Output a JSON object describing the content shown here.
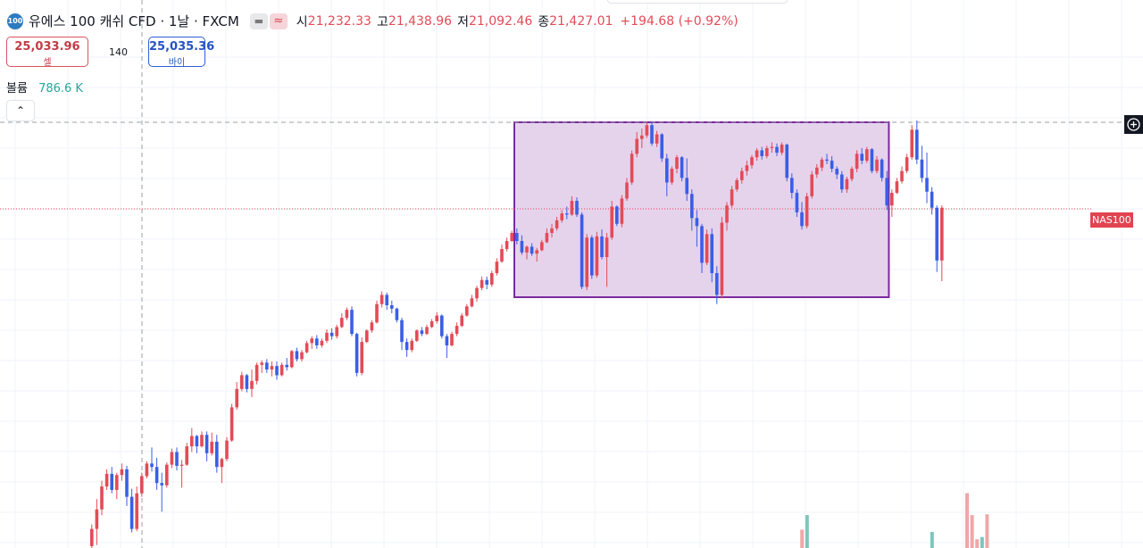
{
  "header": {
    "symbol_badge": "100",
    "title": "유에스 100 캐쉬 CFD · 1날 · FXCM",
    "ohlc": [
      {
        "label": "시",
        "value": "21,232.33"
      },
      {
        "label": "고",
        "value": "21,438.96"
      },
      {
        "label": "저",
        "value": "21,092.46"
      },
      {
        "label": "종",
        "value": "21,427.01"
      }
    ],
    "change": "+194.68 (+0.92%)"
  },
  "trade": {
    "sell_price": "25,033.96",
    "sell_label": "셀",
    "spread": "140",
    "buy_price": "25,035.36",
    "buy_label": "바이"
  },
  "volume": {
    "label": "볼륨",
    "value": "786.6 K"
  },
  "price_tag": "NAS100",
  "colors": {
    "up": "#e34b57",
    "down": "#3a5ee6",
    "box_fill": "#e5d3ec",
    "box_stroke": "#7b2a9e",
    "vol_up": "#efa7a8",
    "vol_down": "#7fc5bc"
  },
  "chart_data": {
    "type": "candlestick",
    "axes_visible": false,
    "grid": true,
    "price_range": [
      17800,
      21600
    ],
    "last_price_line": 20630,
    "crosshair_price": 21385,
    "range_box": {
      "start_index": 85,
      "end_index": 159,
      "high": 21385,
      "low": 19860
    },
    "candles": [
      {
        "o": 17690,
        "h": 17880,
        "l": 17570,
        "c": 17840
      },
      {
        "o": 17840,
        "h": 18100,
        "l": 17700,
        "c": 18010
      },
      {
        "o": 18010,
        "h": 18260,
        "l": 17960,
        "c": 18210
      },
      {
        "o": 18210,
        "h": 18360,
        "l": 18180,
        "c": 18320
      },
      {
        "o": 18320,
        "h": 18380,
        "l": 18150,
        "c": 18180
      },
      {
        "o": 18180,
        "h": 18330,
        "l": 18100,
        "c": 18310
      },
      {
        "o": 18310,
        "h": 18410,
        "l": 18260,
        "c": 18360
      },
      {
        "o": 18360,
        "h": 18390,
        "l": 18040,
        "c": 18120
      },
      {
        "o": 18120,
        "h": 18190,
        "l": 17810,
        "c": 17840
      },
      {
        "o": 17840,
        "h": 18210,
        "l": 17820,
        "c": 18150
      },
      {
        "o": 18150,
        "h": 18330,
        "l": 18120,
        "c": 18300
      },
      {
        "o": 18300,
        "h": 18430,
        "l": 18280,
        "c": 18410
      },
      {
        "o": 18410,
        "h": 18550,
        "l": 18340,
        "c": 18380
      },
      {
        "o": 18380,
        "h": 18460,
        "l": 18180,
        "c": 18240
      },
      {
        "o": 18240,
        "h": 18330,
        "l": 17990,
        "c": 18220
      },
      {
        "o": 18220,
        "h": 18420,
        "l": 18200,
        "c": 18400
      },
      {
        "o": 18400,
        "h": 18540,
        "l": 18370,
        "c": 18510
      },
      {
        "o": 18510,
        "h": 18550,
        "l": 18350,
        "c": 18390
      },
      {
        "o": 18390,
        "h": 18440,
        "l": 18200,
        "c": 18400
      },
      {
        "o": 18400,
        "h": 18590,
        "l": 18390,
        "c": 18560
      },
      {
        "o": 18560,
        "h": 18720,
        "l": 18510,
        "c": 18650
      },
      {
        "o": 18650,
        "h": 18660,
        "l": 18500,
        "c": 18560
      },
      {
        "o": 18560,
        "h": 18690,
        "l": 18550,
        "c": 18660
      },
      {
        "o": 18660,
        "h": 18690,
        "l": 18430,
        "c": 18500
      },
      {
        "o": 18500,
        "h": 18680,
        "l": 18480,
        "c": 18600
      },
      {
        "o": 18600,
        "h": 18660,
        "l": 18330,
        "c": 18380
      },
      {
        "o": 18380,
        "h": 18460,
        "l": 18240,
        "c": 18450
      },
      {
        "o": 18450,
        "h": 18640,
        "l": 18430,
        "c": 18610
      },
      {
        "o": 18610,
        "h": 18930,
        "l": 18600,
        "c": 18900
      },
      {
        "o": 18900,
        "h": 19120,
        "l": 18880,
        "c": 19060
      },
      {
        "o": 19060,
        "h": 19210,
        "l": 19040,
        "c": 19180
      },
      {
        "o": 19180,
        "h": 19190,
        "l": 19030,
        "c": 19060
      },
      {
        "o": 19060,
        "h": 19230,
        "l": 18990,
        "c": 19130
      },
      {
        "o": 19130,
        "h": 19290,
        "l": 19100,
        "c": 19270
      },
      {
        "o": 19270,
        "h": 19310,
        "l": 19200,
        "c": 19290
      },
      {
        "o": 19290,
        "h": 19320,
        "l": 19200,
        "c": 19230
      },
      {
        "o": 19230,
        "h": 19300,
        "l": 19170,
        "c": 19260
      },
      {
        "o": 19260,
        "h": 19300,
        "l": 19140,
        "c": 19180
      },
      {
        "o": 19180,
        "h": 19290,
        "l": 19170,
        "c": 19270
      },
      {
        "o": 19270,
        "h": 19330,
        "l": 19220,
        "c": 19250
      },
      {
        "o": 19250,
        "h": 19400,
        "l": 19240,
        "c": 19390
      },
      {
        "o": 19390,
        "h": 19420,
        "l": 19300,
        "c": 19320
      },
      {
        "o": 19320,
        "h": 19400,
        "l": 19300,
        "c": 19380
      },
      {
        "o": 19380,
        "h": 19480,
        "l": 19370,
        "c": 19460
      },
      {
        "o": 19460,
        "h": 19520,
        "l": 19410,
        "c": 19500
      },
      {
        "o": 19500,
        "h": 19530,
        "l": 19410,
        "c": 19440
      },
      {
        "o": 19440,
        "h": 19500,
        "l": 19420,
        "c": 19480
      },
      {
        "o": 19480,
        "h": 19580,
        "l": 19460,
        "c": 19550
      },
      {
        "o": 19550,
        "h": 19590,
        "l": 19490,
        "c": 19520
      },
      {
        "o": 19520,
        "h": 19620,
        "l": 19500,
        "c": 19600
      },
      {
        "o": 19600,
        "h": 19720,
        "l": 19590,
        "c": 19680
      },
      {
        "o": 19680,
        "h": 19770,
        "l": 19660,
        "c": 19750
      },
      {
        "o": 19750,
        "h": 19780,
        "l": 19520,
        "c": 19540
      },
      {
        "o": 19540,
        "h": 19550,
        "l": 19170,
        "c": 19200
      },
      {
        "o": 19200,
        "h": 19510,
        "l": 19180,
        "c": 19470
      },
      {
        "o": 19470,
        "h": 19580,
        "l": 19460,
        "c": 19570
      },
      {
        "o": 19570,
        "h": 19660,
        "l": 19550,
        "c": 19640
      },
      {
        "o": 19640,
        "h": 19830,
        "l": 19630,
        "c": 19800
      },
      {
        "o": 19800,
        "h": 19910,
        "l": 19770,
        "c": 19880
      },
      {
        "o": 19880,
        "h": 19900,
        "l": 19750,
        "c": 19790
      },
      {
        "o": 19790,
        "h": 19830,
        "l": 19720,
        "c": 19760
      },
      {
        "o": 19760,
        "h": 19770,
        "l": 19640,
        "c": 19660
      },
      {
        "o": 19660,
        "h": 19680,
        "l": 19400,
        "c": 19470
      },
      {
        "o": 19470,
        "h": 19500,
        "l": 19340,
        "c": 19400
      },
      {
        "o": 19400,
        "h": 19500,
        "l": 19380,
        "c": 19480
      },
      {
        "o": 19480,
        "h": 19580,
        "l": 19470,
        "c": 19570
      },
      {
        "o": 19570,
        "h": 19600,
        "l": 19520,
        "c": 19540
      },
      {
        "o": 19540,
        "h": 19620,
        "l": 19530,
        "c": 19600
      },
      {
        "o": 19600,
        "h": 19670,
        "l": 19590,
        "c": 19650
      },
      {
        "o": 19650,
        "h": 19730,
        "l": 19630,
        "c": 19700
      },
      {
        "o": 19700,
        "h": 19710,
        "l": 19500,
        "c": 19520
      },
      {
        "o": 19520,
        "h": 19540,
        "l": 19330,
        "c": 19440
      },
      {
        "o": 19440,
        "h": 19560,
        "l": 19430,
        "c": 19540
      },
      {
        "o": 19540,
        "h": 19640,
        "l": 19520,
        "c": 19610
      },
      {
        "o": 19610,
        "h": 19720,
        "l": 19600,
        "c": 19700
      },
      {
        "o": 19700,
        "h": 19800,
        "l": 19690,
        "c": 19780
      },
      {
        "o": 19780,
        "h": 19880,
        "l": 19770,
        "c": 19850
      },
      {
        "o": 19850,
        "h": 19960,
        "l": 19820,
        "c": 19940
      },
      {
        "o": 19940,
        "h": 20040,
        "l": 19920,
        "c": 20010
      },
      {
        "o": 20010,
        "h": 20040,
        "l": 19930,
        "c": 19970
      },
      {
        "o": 19970,
        "h": 20090,
        "l": 19950,
        "c": 20070
      },
      {
        "o": 20070,
        "h": 20200,
        "l": 20050,
        "c": 20170
      },
      {
        "o": 20170,
        "h": 20320,
        "l": 20160,
        "c": 20280
      },
      {
        "o": 20280,
        "h": 20380,
        "l": 20260,
        "c": 20350
      },
      {
        "o": 20350,
        "h": 20440,
        "l": 20340,
        "c": 20420
      },
      {
        "o": 20420,
        "h": 20460,
        "l": 20320,
        "c": 20350
      },
      {
        "o": 20350,
        "h": 20400,
        "l": 20230,
        "c": 20250
      },
      {
        "o": 20250,
        "h": 20310,
        "l": 20190,
        "c": 20300
      },
      {
        "o": 20300,
        "h": 20330,
        "l": 20220,
        "c": 20240
      },
      {
        "o": 20240,
        "h": 20290,
        "l": 20170,
        "c": 20270
      },
      {
        "o": 20270,
        "h": 20360,
        "l": 20260,
        "c": 20340
      },
      {
        "o": 20340,
        "h": 20460,
        "l": 20330,
        "c": 20420
      },
      {
        "o": 20420,
        "h": 20500,
        "l": 20380,
        "c": 20460
      },
      {
        "o": 20460,
        "h": 20560,
        "l": 20440,
        "c": 20530
      },
      {
        "o": 20530,
        "h": 20620,
        "l": 20510,
        "c": 20590
      },
      {
        "o": 20590,
        "h": 20650,
        "l": 20540,
        "c": 20580
      },
      {
        "o": 20580,
        "h": 20740,
        "l": 20570,
        "c": 20700
      },
      {
        "o": 20700,
        "h": 20730,
        "l": 20560,
        "c": 20580
      },
      {
        "o": 20580,
        "h": 20600,
        "l": 19930,
        "c": 19950
      },
      {
        "o": 19950,
        "h": 20410,
        "l": 19920,
        "c": 20380
      },
      {
        "o": 20380,
        "h": 20400,
        "l": 20020,
        "c": 20050
      },
      {
        "o": 20050,
        "h": 20430,
        "l": 20030,
        "c": 20390
      },
      {
        "o": 20390,
        "h": 20450,
        "l": 20190,
        "c": 20210
      },
      {
        "o": 20210,
        "h": 20420,
        "l": 19950,
        "c": 20380
      },
      {
        "o": 20380,
        "h": 20700,
        "l": 20360,
        "c": 20650
      },
      {
        "o": 20650,
        "h": 20660,
        "l": 20480,
        "c": 20500
      },
      {
        "o": 20500,
        "h": 20750,
        "l": 20470,
        "c": 20720
      },
      {
        "o": 20720,
        "h": 20900,
        "l": 20700,
        "c": 20860
      },
      {
        "o": 20860,
        "h": 21140,
        "l": 20840,
        "c": 21110
      },
      {
        "o": 21110,
        "h": 21300,
        "l": 21080,
        "c": 21240
      },
      {
        "o": 21240,
        "h": 21330,
        "l": 21160,
        "c": 21270
      },
      {
        "o": 21270,
        "h": 21390,
        "l": 21250,
        "c": 21360
      },
      {
        "o": 21360,
        "h": 21390,
        "l": 21180,
        "c": 21200
      },
      {
        "o": 21200,
        "h": 21310,
        "l": 21170,
        "c": 21280
      },
      {
        "o": 21280,
        "h": 21290,
        "l": 21040,
        "c": 21070
      },
      {
        "o": 21070,
        "h": 21110,
        "l": 20740,
        "c": 20860
      },
      {
        "o": 20860,
        "h": 21000,
        "l": 20840,
        "c": 20980
      },
      {
        "o": 20980,
        "h": 21100,
        "l": 20940,
        "c": 21080
      },
      {
        "o": 21080,
        "h": 21090,
        "l": 20870,
        "c": 20900
      },
      {
        "o": 20900,
        "h": 21070,
        "l": 20700,
        "c": 20760
      },
      {
        "o": 20760,
        "h": 20800,
        "l": 20440,
        "c": 20550
      },
      {
        "o": 20550,
        "h": 20620,
        "l": 20300,
        "c": 20480
      },
      {
        "o": 20480,
        "h": 20500,
        "l": 20070,
        "c": 20160
      },
      {
        "o": 20160,
        "h": 20450,
        "l": 20140,
        "c": 20410
      },
      {
        "o": 20410,
        "h": 20460,
        "l": 19990,
        "c": 20070
      },
      {
        "o": 20070,
        "h": 20130,
        "l": 19800,
        "c": 19880
      },
      {
        "o": 19880,
        "h": 20560,
        "l": 19850,
        "c": 20510
      },
      {
        "o": 20510,
        "h": 20690,
        "l": 20440,
        "c": 20660
      },
      {
        "o": 20660,
        "h": 20830,
        "l": 20640,
        "c": 20800
      },
      {
        "o": 20800,
        "h": 20900,
        "l": 20780,
        "c": 20880
      },
      {
        "o": 20880,
        "h": 20990,
        "l": 20850,
        "c": 20960
      },
      {
        "o": 20960,
        "h": 21050,
        "l": 20920,
        "c": 21010
      },
      {
        "o": 21010,
        "h": 21100,
        "l": 20980,
        "c": 21080
      },
      {
        "o": 21080,
        "h": 21160,
        "l": 21050,
        "c": 21140
      },
      {
        "o": 21140,
        "h": 21170,
        "l": 21060,
        "c": 21090
      },
      {
        "o": 21090,
        "h": 21180,
        "l": 21070,
        "c": 21160
      },
      {
        "o": 21160,
        "h": 21210,
        "l": 21120,
        "c": 21170
      },
      {
        "o": 21170,
        "h": 21200,
        "l": 21090,
        "c": 21120
      },
      {
        "o": 21120,
        "h": 21210,
        "l": 21100,
        "c": 21190
      },
      {
        "o": 21190,
        "h": 21200,
        "l": 20870,
        "c": 20900
      },
      {
        "o": 20900,
        "h": 20940,
        "l": 20720,
        "c": 20770
      },
      {
        "o": 20770,
        "h": 20800,
        "l": 20560,
        "c": 20600
      },
      {
        "o": 20600,
        "h": 20690,
        "l": 20450,
        "c": 20480
      },
      {
        "o": 20480,
        "h": 20770,
        "l": 20460,
        "c": 20740
      },
      {
        "o": 20740,
        "h": 20960,
        "l": 20720,
        "c": 20930
      },
      {
        "o": 20930,
        "h": 21020,
        "l": 20900,
        "c": 20990
      },
      {
        "o": 20990,
        "h": 21080,
        "l": 20960,
        "c": 21060
      },
      {
        "o": 21060,
        "h": 21110,
        "l": 21020,
        "c": 21050
      },
      {
        "o": 21050,
        "h": 21090,
        "l": 20950,
        "c": 20980
      },
      {
        "o": 20980,
        "h": 21000,
        "l": 20890,
        "c": 20930
      },
      {
        "o": 20930,
        "h": 20960,
        "l": 20770,
        "c": 20800
      },
      {
        "o": 20800,
        "h": 20910,
        "l": 20770,
        "c": 20890
      },
      {
        "o": 20890,
        "h": 21000,
        "l": 20870,
        "c": 20980
      },
      {
        "o": 20980,
        "h": 21140,
        "l": 20950,
        "c": 21110
      },
      {
        "o": 21110,
        "h": 21160,
        "l": 21020,
        "c": 21050
      },
      {
        "o": 21050,
        "h": 21170,
        "l": 21030,
        "c": 21150
      },
      {
        "o": 21150,
        "h": 21160,
        "l": 20940,
        "c": 20960
      },
      {
        "o": 20960,
        "h": 21090,
        "l": 20940,
        "c": 21060
      },
      {
        "o": 21060,
        "h": 21070,
        "l": 20870,
        "c": 20900
      },
      {
        "o": 20900,
        "h": 20960,
        "l": 20620,
        "c": 20660
      },
      {
        "o": 20660,
        "h": 20800,
        "l": 20560,
        "c": 20770
      },
      {
        "o": 20770,
        "h": 20900,
        "l": 20760,
        "c": 20870
      },
      {
        "o": 20870,
        "h": 21000,
        "l": 20850,
        "c": 20960
      },
      {
        "o": 20960,
        "h": 21110,
        "l": 20940,
        "c": 21080
      },
      {
        "o": 21080,
        "h": 21360,
        "l": 21060,
        "c": 21320
      },
      {
        "o": 21320,
        "h": 21400,
        "l": 21020,
        "c": 21060
      },
      {
        "o": 21060,
        "h": 21180,
        "l": 20860,
        "c": 20900
      },
      {
        "o": 20900,
        "h": 21120,
        "l": 20680,
        "c": 20780
      },
      {
        "o": 20780,
        "h": 20820,
        "l": 20580,
        "c": 20640
      },
      {
        "o": 20640,
        "h": 20660,
        "l": 20080,
        "c": 20180
      },
      {
        "o": 20180,
        "h": 20660,
        "l": 20000,
        "c": 20640
      }
    ],
    "volume": [
      {
        "index": 142,
        "value": 0.25,
        "dir": "up"
      },
      {
        "index": 143,
        "value": 0.45,
        "dir": "down"
      },
      {
        "index": 168,
        "value": 0.22,
        "dir": "down"
      },
      {
        "index": 175,
        "value": 0.75,
        "dir": "up"
      },
      {
        "index": 176,
        "value": 0.45,
        "dir": "up"
      },
      {
        "index": 177,
        "value": 0.12,
        "dir": "up"
      },
      {
        "index": 178,
        "value": 0.15,
        "dir": "down"
      },
      {
        "index": 179,
        "value": 0.46,
        "dir": "up"
      }
    ]
  }
}
